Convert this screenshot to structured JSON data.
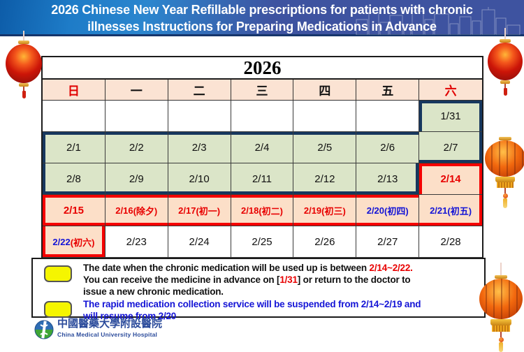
{
  "banner": {
    "title_line1": "2026 Chinese New Year Refillable prescriptions for patients with chronic",
    "title_line2": "illnesses Instructions for Preparing Medications in Advance"
  },
  "calendar": {
    "year": "2026",
    "weekdays": [
      {
        "label": "日",
        "color": "#e00000"
      },
      {
        "label": "一",
        "color": "#111111"
      },
      {
        "label": "二",
        "color": "#111111"
      },
      {
        "label": "三",
        "color": "#111111"
      },
      {
        "label": "四",
        "color": "#111111"
      },
      {
        "label": "五",
        "color": "#111111"
      },
      {
        "label": "六",
        "color": "#e00000"
      }
    ],
    "rows": [
      [
        {
          "d": "",
          "bg": "white"
        },
        {
          "d": "",
          "bg": "white"
        },
        {
          "d": "",
          "bg": "white"
        },
        {
          "d": "",
          "bg": "white"
        },
        {
          "d": "",
          "bg": "white"
        },
        {
          "d": "",
          "bg": "white"
        },
        {
          "d": "1/31",
          "bg": "green",
          "c": "black",
          "navy": "TLR"
        }
      ],
      [
        {
          "d": "2/1",
          "bg": "green",
          "c": "black",
          "navy": "TL"
        },
        {
          "d": "2/2",
          "bg": "green",
          "c": "black",
          "navy": "T"
        },
        {
          "d": "2/3",
          "bg": "green",
          "c": "black",
          "navy": "T"
        },
        {
          "d": "2/4",
          "bg": "green",
          "c": "black",
          "navy": "T"
        },
        {
          "d": "2/5",
          "bg": "green",
          "c": "black",
          "navy": "T"
        },
        {
          "d": "2/6",
          "bg": "green",
          "c": "black",
          "navy": "T"
        },
        {
          "d": "2/7",
          "bg": "green",
          "c": "black",
          "navy": "RB"
        }
      ],
      [
        {
          "d": "2/8",
          "bg": "green",
          "c": "black",
          "navy": "LB"
        },
        {
          "d": "2/9",
          "bg": "green",
          "c": "black",
          "navy": "B"
        },
        {
          "d": "2/10",
          "bg": "green",
          "c": "black",
          "navy": "B"
        },
        {
          "d": "2/11",
          "bg": "green",
          "c": "black",
          "navy": "B"
        },
        {
          "d": "2/12",
          "bg": "green",
          "c": "black",
          "navy": "B"
        },
        {
          "d": "2/13",
          "bg": "green",
          "c": "black",
          "navy": "BR"
        },
        {
          "d": "2/14",
          "bg": "peach",
          "c": "red",
          "red": "TLR",
          "bold": true
        }
      ],
      [
        {
          "d": "2/15",
          "bg": "peach",
          "c": "red",
          "red": "TLB",
          "bold": true
        },
        {
          "d": "2/16",
          "s": "(除夕)",
          "bg": "peach",
          "c": "red",
          "sc": "red",
          "red": "TB",
          "bold": true
        },
        {
          "d": "2/17",
          "s": "(初一)",
          "bg": "peach",
          "c": "red",
          "sc": "red",
          "red": "TB",
          "bold": true
        },
        {
          "d": "2/18",
          "s": "(初二)",
          "bg": "peach",
          "c": "red",
          "sc": "red",
          "red": "TB",
          "bold": true
        },
        {
          "d": "2/19",
          "s": "(初三)",
          "bg": "peach",
          "c": "red",
          "sc": "red",
          "red": "TB",
          "bold": true
        },
        {
          "d": "2/20",
          "s": "(初四)",
          "bg": "peach",
          "c": "blue",
          "sc": "blue",
          "red": "TB",
          "bold": true
        },
        {
          "d": "2/21",
          "s": "(初五)",
          "bg": "peach",
          "c": "blue",
          "sc": "blue",
          "red": "RB",
          "bold": true
        }
      ],
      [
        {
          "d": "2/22",
          "s": "(初六)",
          "bg": "peach",
          "c": "blue",
          "sc": "red",
          "red": "LRB",
          "bold": true
        },
        {
          "d": "2/23",
          "bg": "white",
          "c": "black"
        },
        {
          "d": "2/24",
          "bg": "white",
          "c": "black"
        },
        {
          "d": "2/25",
          "bg": "white",
          "c": "black"
        },
        {
          "d": "2/26",
          "bg": "white",
          "c": "black"
        },
        {
          "d": "2/27",
          "bg": "white",
          "c": "black"
        },
        {
          "d": "2/28",
          "bg": "white",
          "c": "black"
        }
      ]
    ]
  },
  "legend": {
    "items": [
      {
        "bullet": "yellow-box",
        "lines": [
          [
            {
              "t": "The date when the chronic medication will be used up is between ",
              "c": "k"
            },
            {
              "t": "2/14~2/22.",
              "c": "r"
            }
          ],
          [
            {
              "t": "You can receive the medicine in advance on [",
              "c": "k"
            },
            {
              "t": "1/31",
              "c": "r"
            },
            {
              "t": "] or return to the doctor to",
              "c": "k"
            }
          ],
          [
            {
              "t": "issue a new chronic medication.",
              "c": "k"
            }
          ]
        ]
      },
      {
        "bullet": "yellow-box",
        "lines": [
          [
            {
              "t": "The rapid medication collection service will be suspended from 2/14~2/19 and",
              "c": "b"
            }
          ],
          [
            {
              "t": "will resume from 2/20",
              "c": "b"
            }
          ]
        ]
      }
    ]
  },
  "footer": {
    "hospital_cn": "中國醫藥大學附設醫院",
    "hospital_en": "China Medical University Hospital"
  },
  "colors": {
    "navy_border": "#17375e",
    "red_border": "#f40000",
    "cell_green": "#dbe5c8",
    "cell_peach": "#fcdfc8",
    "header_peach": "#fbe3d3",
    "text_red": "#e80000",
    "text_blue": "#1414d6",
    "text_black": "#111111",
    "legend_yellow": "#f5f500",
    "banner_left_blue": "#1e7cc8",
    "banner_right_blue": "#3e53a0"
  }
}
